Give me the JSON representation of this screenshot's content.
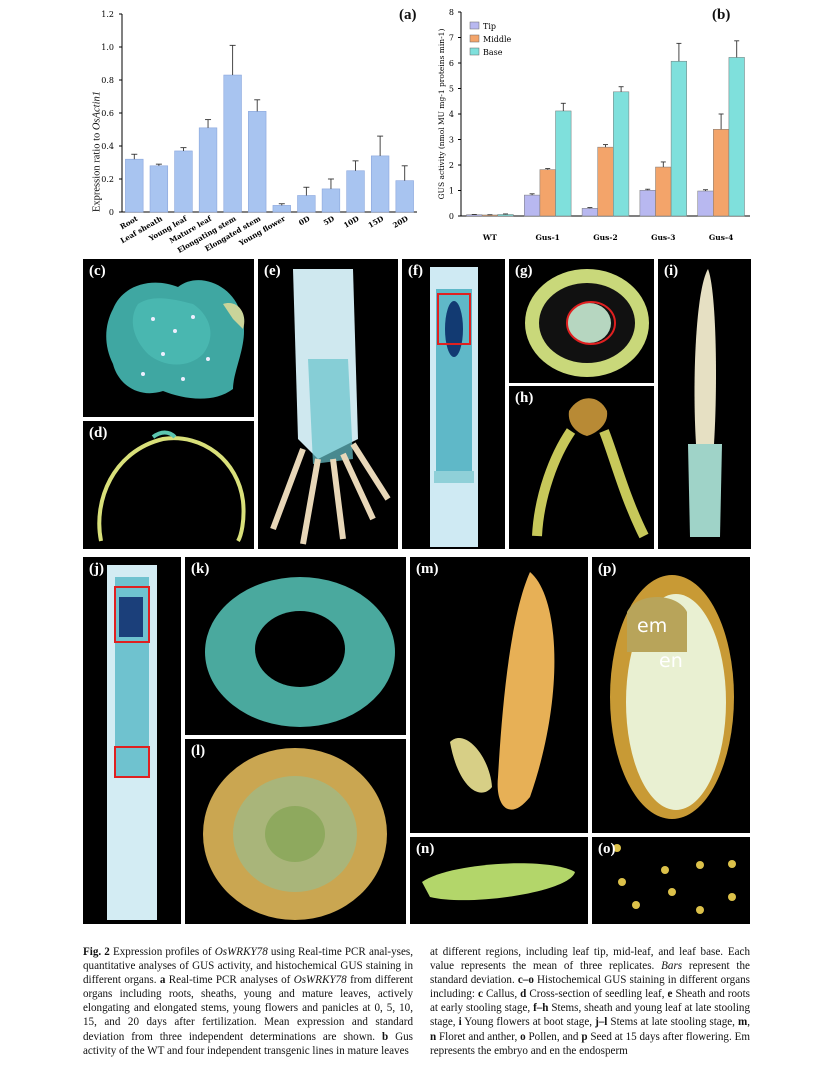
{
  "figure": {
    "panel_labels": [
      "(a)",
      "(b)",
      "(c)",
      "(d)",
      "(e)",
      "(f)",
      "(g)",
      "(h)",
      "(i)",
      "(j)",
      "(k)",
      "(l)",
      "(m)",
      "(n)",
      "(o)",
      "(p)"
    ],
    "seed_labels": {
      "em": "em",
      "en": "en"
    }
  },
  "chart_data": [
    {
      "type": "bar",
      "panel": "(a)",
      "ylabel": "Expression ratio to OsActin1",
      "ylabel_plain": "Expression ratio to ",
      "ylabel_italic": "OsActin1",
      "ylim": [
        0,
        1.2
      ],
      "yticks": [
        "0",
        "0.2",
        "0.4",
        "0.6",
        "0.8",
        "1.0",
        "1.2"
      ],
      "categories": [
        "Root",
        "Leaf sheath",
        "Young leaf",
        "Mature leaf",
        "Elongating stem",
        "Elongated stem",
        "Young flower",
        "0D",
        "5D",
        "10D",
        "15D",
        "20D"
      ],
      "values": [
        0.32,
        0.28,
        0.37,
        0.51,
        0.83,
        0.61,
        0.04,
        0.1,
        0.14,
        0.25,
        0.34,
        0.19
      ],
      "errors": [
        0.03,
        0.01,
        0.02,
        0.05,
        0.18,
        0.07,
        0.01,
        0.05,
        0.06,
        0.06,
        0.12,
        0.09
      ],
      "color": "#a8c4f0"
    },
    {
      "type": "bar",
      "panel": "(b)",
      "ylabel": "GUS activity (nmol MU mg-1 proteins min-1)",
      "ylim": [
        0,
        8
      ],
      "yticks": [
        "0",
        "1",
        "2",
        "3",
        "4",
        "5",
        "6",
        "7",
        "8"
      ],
      "categories": [
        "WT",
        "Gus-1",
        "Gus-2",
        "Gus-3",
        "Gus-4"
      ],
      "series": [
        {
          "name": "Tip",
          "color": "#b8b8f0",
          "values": [
            0.05,
            0.82,
            0.3,
            1.01,
            0.98
          ],
          "errors": [
            0.01,
            0.05,
            0.03,
            0.04,
            0.05
          ]
        },
        {
          "name": "Middle",
          "color": "#f3a46a",
          "values": [
            0.04,
            1.82,
            2.7,
            1.92,
            3.4
          ],
          "errors": [
            0.01,
            0.04,
            0.1,
            0.2,
            0.6
          ]
        },
        {
          "name": "Base",
          "color": "#7fe0dc",
          "values": [
            0.06,
            4.12,
            4.87,
            6.07,
            6.22
          ],
          "errors": [
            0.02,
            0.3,
            0.2,
            0.7,
            0.65
          ]
        }
      ],
      "legend": "top-left"
    }
  ],
  "caption": {
    "left": [
      {
        "b": "Fig. 2",
        "t": "  Expression profiles of "
      },
      {
        "i": "OsWRKY78",
        "t": " using Real-time PCR anal-yses, quantitative analyses of GUS activity, and histochemical GUS staining in different organs. "
      },
      {
        "b": "a",
        "t": " Real-time PCR analyses of "
      },
      {
        "i": "OsWRKY78",
        "t": " from different organs including roots, sheaths, young and mature leaves, actively elongating and elongated stems, young flowers and panicles at 0, 5, 10, 15, and 20 days after fertilization. Mean expression and standard deviation from three independent determinations are shown. "
      },
      {
        "b": "b",
        "t": " Gus activity of the WT and four independent transgenic lines in mature leaves"
      }
    ],
    "right": [
      {
        "t": "at different regions, including leaf tip, mid-leaf, and leaf base. Each value represents the mean of three replicates. "
      },
      {
        "i": "Bars",
        "t": " represent the standard deviation. "
      },
      {
        "b": "c–o",
        "t": " Histochemical GUS staining in different organs including: "
      },
      {
        "b": "c",
        "t": " Callus, "
      },
      {
        "b": "d",
        "t": " Cross-section of seedling leaf, "
      },
      {
        "b": "e",
        "t": " Sheath and roots at early stooling stage, "
      },
      {
        "b": "f–h",
        "t": " Stems, sheath and young leaf at late stooling stage, "
      },
      {
        "b": "i",
        "t": " Young flowers at boot stage, "
      },
      {
        "b": "j–l",
        "t": " Stems at late stooling stage, "
      },
      {
        "b": "m",
        "t": ", "
      },
      {
        "b": "n",
        "t": " Floret and anther, "
      },
      {
        "b": "o",
        "t": " Pollen, and "
      },
      {
        "b": "p",
        "t": " Seed at 15 days after flowering. Em represents the embryo and en the endosperm"
      }
    ]
  }
}
